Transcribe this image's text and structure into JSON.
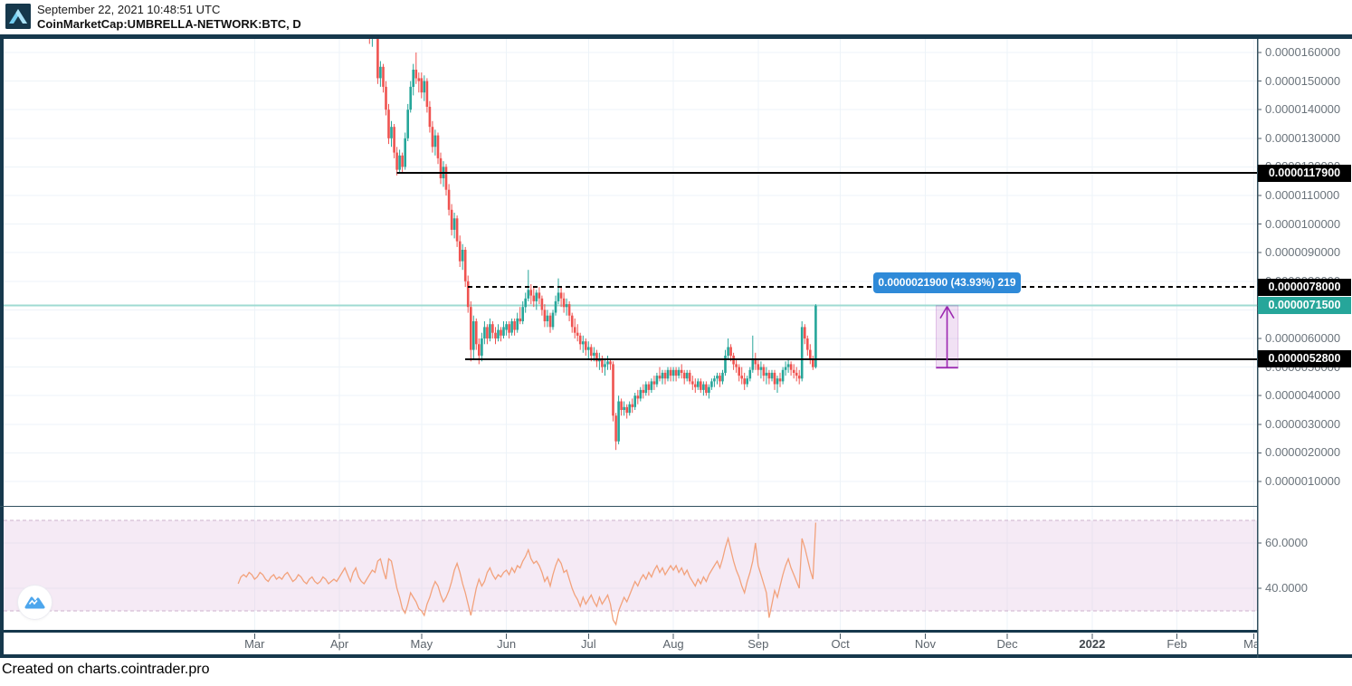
{
  "header": {
    "timestamp": "September 22, 2021 10:48:51 UTC",
    "symbol": "CoinMarketCap:UMBRELLA-NETWORK:BTC, D"
  },
  "footer": {
    "created_on": "Created on charts.cointrader.pro"
  },
  "tooltip": {
    "text": "0.0000021900 (43.93%) 219",
    "bg": "#2f8ad8"
  },
  "price_scale": {
    "labels": [
      "0.0000160000",
      "0.0000150000",
      "0.0000140000",
      "0.0000130000",
      "0.0000120000",
      "0.0000110000",
      "0.0000100000",
      "0.0000090000",
      "0.0000080000",
      "0.0000070000",
      "0.0000060000",
      "0.0000050000",
      "0.0000040000",
      "0.0000030000",
      "0.0000020000",
      "0.0000010000"
    ],
    "tags": [
      {
        "label": "0.0000117900",
        "value_u": 11.79,
        "bg": "#000000"
      },
      {
        "label": "0.0000078000",
        "value_u": 7.8,
        "bg": "#000000"
      },
      {
        "label": "0.0000071500",
        "value_u": 7.15,
        "bg": "#26a69a"
      },
      {
        "label": "0.0000052800",
        "value_u": 5.28,
        "bg": "#000000"
      }
    ]
  },
  "indicator_scale": {
    "labels": [
      {
        "label": "60.0000",
        "value": 60
      },
      {
        "label": "40.0000",
        "value": 40
      }
    ]
  },
  "time_axis": {
    "months": [
      {
        "label": "Mar",
        "date": "2021-03-01"
      },
      {
        "label": "Apr",
        "date": "2021-04-01"
      },
      {
        "label": "May",
        "date": "2021-05-01"
      },
      {
        "label": "Jun",
        "date": "2021-06-01"
      },
      {
        "label": "Jul",
        "date": "2021-07-01"
      },
      {
        "label": "Aug",
        "date": "2021-08-01"
      },
      {
        "label": "Sep",
        "date": "2021-09-01"
      },
      {
        "label": "Oct",
        "date": "2021-10-01"
      },
      {
        "label": "Nov",
        "date": "2021-11-01"
      },
      {
        "label": "Dec",
        "date": "2021-12-01"
      },
      {
        "label": "2022",
        "date": "2022-01-01",
        "bold": true
      },
      {
        "label": "Feb",
        "date": "2022-02-01"
      },
      {
        "label": "Mar",
        "date": "2022-03-01"
      }
    ]
  },
  "colors": {
    "up": "#26a69a",
    "down": "#ef5350",
    "grid": "#edf3f8",
    "border": "#16384c",
    "panel_line": "#31505f",
    "tick": "#4a5a66",
    "axis_text": "#6a737b",
    "rsi_line": "#f2a27c",
    "rsi_band_fill": "rgba(226,196,226,0.35)",
    "rsi_band_edge": "#cdb2cd",
    "measure": "#9c27b0",
    "measure_fill": "rgba(156,39,176,0.14)",
    "last_price_line": "#9fdbd2"
  },
  "chart_data": {
    "type": "candlestick",
    "title": "CoinMarketCap:UMBRELLA-NETWORK:BTC, D",
    "interval": "D",
    "price_unit_note": "all *_u price values are in units of 0.000001 BTC",
    "y_axis_u_range": [
      0.15,
      16.48
    ],
    "last_price": "0.0000071500",
    "grid": true,
    "candles": {
      "from_date": "2021-04-12",
      "ohlc_u": [
        [
          17.6,
          17.8,
          16.3,
          16.5
        ],
        [
          16.5,
          17.9,
          16.2,
          17.5
        ],
        [
          17.5,
          17.7,
          16.8,
          17.0
        ],
        [
          17.0,
          17.2,
          14.9,
          15.1
        ],
        [
          15.1,
          15.7,
          14.8,
          15.5
        ],
        [
          15.5,
          15.6,
          14.6,
          14.8
        ],
        [
          14.8,
          15.0,
          13.8,
          14.0
        ],
        [
          14.0,
          14.2,
          12.8,
          13.0
        ],
        [
          13.0,
          13.6,
          12.7,
          13.4
        ],
        [
          13.4,
          13.5,
          12.3,
          12.5
        ],
        [
          12.5,
          12.7,
          11.7,
          11.9
        ],
        [
          11.9,
          12.6,
          11.8,
          12.4
        ],
        [
          12.4,
          12.5,
          11.8,
          12.0
        ],
        [
          12.0,
          13.2,
          11.9,
          13.0
        ],
        [
          13.0,
          14.2,
          12.9,
          14.0
        ],
        [
          14.0,
          15.0,
          13.9,
          14.8
        ],
        [
          14.8,
          15.6,
          14.5,
          15.4
        ],
        [
          15.4,
          16.0,
          14.9,
          15.1
        ],
        [
          15.1,
          15.3,
          14.6,
          15.0
        ],
        [
          15.1,
          15.3,
          14.4,
          14.6
        ],
        [
          14.6,
          15.2,
          14.3,
          15.0
        ],
        [
          15.0,
          15.1,
          13.9,
          14.1
        ],
        [
          14.1,
          14.3,
          13.2,
          13.4
        ],
        [
          13.4,
          13.6,
          12.5,
          12.7
        ],
        [
          12.7,
          13.3,
          12.4,
          13.1
        ],
        [
          13.1,
          13.2,
          12.1,
          12.3
        ],
        [
          12.3,
          12.5,
          11.4,
          11.6
        ],
        [
          11.6,
          12.2,
          11.3,
          12.0
        ],
        [
          12.0,
          12.1,
          11.0,
          11.2
        ],
        [
          11.2,
          11.4,
          10.3,
          10.5
        ],
        [
          10.5,
          10.7,
          9.6,
          9.8
        ],
        [
          9.8,
          10.4,
          9.5,
          10.2
        ],
        [
          10.2,
          10.3,
          9.2,
          9.4
        ],
        [
          9.4,
          9.6,
          8.5,
          8.7
        ],
        [
          8.7,
          9.3,
          8.4,
          9.1
        ],
        [
          9.1,
          9.2,
          7.8,
          8.0
        ],
        [
          8.0,
          8.2,
          6.9,
          7.1
        ],
        [
          7.1,
          7.3,
          5.2,
          5.6
        ],
        [
          5.6,
          6.8,
          5.3,
          6.6
        ],
        [
          6.6,
          6.7,
          5.6,
          5.8
        ],
        [
          5.8,
          6.0,
          5.1,
          5.4
        ],
        [
          5.4,
          6.2,
          5.2,
          6.0
        ],
        [
          6.0,
          6.6,
          5.8,
          6.4
        ],
        [
          6.4,
          6.5,
          5.8,
          6.0
        ],
        [
          6.0,
          6.7,
          5.9,
          6.5
        ],
        [
          6.5,
          6.6,
          6.0,
          6.2
        ],
        [
          6.2,
          6.4,
          5.8,
          6.0
        ],
        [
          6.0,
          6.5,
          5.9,
          6.3
        ],
        [
          6.3,
          6.4,
          5.9,
          6.1
        ],
        [
          6.1,
          6.6,
          6.0,
          6.4
        ],
        [
          6.3,
          6.6,
          6.1,
          6.5
        ],
        [
          6.5,
          6.6,
          6.0,
          6.2
        ],
        [
          6.2,
          6.7,
          6.1,
          6.6
        ],
        [
          6.6,
          6.7,
          6.1,
          6.3
        ],
        [
          6.3,
          6.9,
          6.2,
          6.7
        ],
        [
          6.7,
          7.1,
          6.5,
          6.6
        ],
        [
          6.6,
          7.3,
          6.5,
          7.1
        ],
        [
          7.1,
          7.6,
          6.9,
          7.4
        ],
        [
          7.4,
          8.4,
          7.3,
          7.7
        ],
        [
          7.7,
          7.9,
          7.2,
          7.5
        ],
        [
          7.5,
          7.8,
          7.1,
          7.3
        ],
        [
          7.3,
          7.7,
          7.0,
          7.6
        ],
        [
          7.6,
          7.8,
          7.2,
          7.4
        ],
        [
          7.4,
          7.5,
          6.8,
          7.0
        ],
        [
          7.0,
          7.2,
          6.4,
          6.6
        ],
        [
          6.6,
          7.0,
          6.4,
          6.8
        ],
        [
          6.8,
          6.9,
          6.2,
          6.4
        ],
        [
          6.4,
          7.0,
          6.3,
          6.9
        ],
        [
          6.9,
          7.5,
          6.8,
          7.3
        ],
        [
          7.3,
          8.1,
          7.2,
          7.6
        ],
        [
          7.6,
          7.8,
          7.1,
          7.4
        ],
        [
          7.4,
          7.6,
          6.9,
          7.1
        ],
        [
          7.1,
          7.4,
          6.8,
          7.2
        ],
        [
          7.2,
          7.3,
          6.6,
          6.8
        ],
        [
          6.8,
          6.9,
          6.2,
          6.4
        ],
        [
          6.4,
          6.7,
          6.0,
          6.2
        ],
        [
          6.2,
          6.5,
          5.9,
          6.1
        ],
        [
          6.1,
          6.2,
          5.6,
          5.8
        ],
        [
          5.8,
          6.1,
          5.5,
          5.9
        ],
        [
          5.9,
          6.0,
          5.4,
          5.6
        ],
        [
          5.6,
          5.9,
          5.3,
          5.7
        ],
        [
          5.7,
          5.8,
          5.2,
          5.4
        ],
        [
          5.4,
          5.7,
          5.2,
          5.5
        ],
        [
          5.5,
          5.6,
          5.0,
          5.2
        ],
        [
          5.2,
          5.5,
          4.9,
          5.3
        ],
        [
          5.3,
          5.4,
          4.8,
          5.0
        ],
        [
          5.0,
          5.3,
          4.7,
          5.1
        ],
        [
          5.1,
          5.4,
          4.9,
          5.2
        ],
        [
          5.2,
          5.3,
          4.9,
          5.1
        ],
        [
          5.1,
          5.2,
          3.1,
          3.3
        ],
        [
          3.3,
          3.4,
          2.1,
          2.4
        ],
        [
          2.4,
          4.0,
          2.3,
          3.8
        ],
        [
          3.8,
          3.9,
          3.3,
          3.5
        ],
        [
          3.5,
          3.8,
          3.3,
          3.6
        ],
        [
          3.6,
          3.7,
          3.2,
          3.4
        ],
        [
          3.4,
          3.8,
          3.3,
          3.7
        ],
        [
          3.7,
          3.9,
          3.4,
          3.6
        ],
        [
          3.6,
          4.1,
          3.5,
          4.0
        ],
        [
          4.0,
          4.2,
          3.7,
          3.9
        ],
        [
          3.9,
          4.3,
          3.8,
          4.2
        ],
        [
          4.2,
          4.4,
          3.9,
          4.1
        ],
        [
          4.1,
          4.5,
          4.0,
          4.4
        ],
        [
          4.4,
          4.5,
          4.0,
          4.2
        ],
        [
          4.2,
          4.6,
          4.1,
          4.5
        ],
        [
          4.5,
          4.7,
          4.2,
          4.4
        ],
        [
          4.4,
          4.8,
          4.3,
          4.7
        ],
        [
          4.7,
          5.0,
          4.5,
          4.6
        ],
        [
          4.6,
          4.9,
          4.4,
          4.8
        ],
        [
          4.8,
          4.9,
          4.4,
          4.6
        ],
        [
          4.6,
          5.0,
          4.5,
          4.9
        ],
        [
          4.9,
          5.0,
          4.5,
          4.7
        ],
        [
          4.7,
          5.0,
          4.5,
          4.9
        ],
        [
          4.9,
          5.0,
          4.5,
          4.7
        ],
        [
          4.7,
          5.0,
          4.6,
          4.9
        ],
        [
          4.9,
          5.1,
          4.6,
          4.8
        ],
        [
          4.8,
          4.9,
          4.4,
          4.6
        ],
        [
          4.6,
          4.9,
          4.5,
          4.8
        ],
        [
          4.8,
          4.9,
          4.4,
          4.5
        ],
        [
          4.5,
          4.7,
          4.2,
          4.4
        ],
        [
          4.4,
          4.6,
          4.1,
          4.3
        ],
        [
          4.3,
          4.6,
          4.2,
          4.5
        ],
        [
          4.5,
          4.6,
          4.1,
          4.2
        ],
        [
          4.2,
          4.5,
          4.0,
          4.4
        ],
        [
          4.4,
          4.5,
          4.0,
          4.1
        ],
        [
          4.1,
          4.4,
          3.9,
          4.3
        ],
        [
          4.3,
          4.6,
          4.2,
          4.5
        ],
        [
          4.5,
          4.7,
          4.3,
          4.6
        ],
        [
          4.6,
          4.8,
          4.4,
          4.7
        ],
        [
          4.7,
          4.8,
          4.3,
          4.5
        ],
        [
          4.5,
          4.9,
          4.4,
          4.8
        ],
        [
          4.8,
          5.6,
          4.7,
          5.4
        ],
        [
          5.4,
          6.0,
          5.3,
          5.7
        ],
        [
          5.7,
          5.8,
          5.2,
          5.4
        ],
        [
          5.4,
          5.5,
          4.9,
          5.1
        ],
        [
          5.1,
          5.3,
          4.8,
          5.0
        ],
        [
          5.0,
          5.1,
          4.5,
          4.7
        ],
        [
          4.7,
          5.0,
          4.4,
          4.6
        ],
        [
          4.6,
          4.8,
          4.2,
          4.4
        ],
        [
          4.4,
          4.7,
          4.3,
          4.6
        ],
        [
          4.6,
          5.0,
          4.5,
          4.9
        ],
        [
          4.9,
          6.1,
          4.8,
          5.3
        ],
        [
          5.3,
          5.5,
          4.9,
          5.1
        ],
        [
          5.1,
          5.3,
          4.7,
          4.9
        ],
        [
          4.9,
          5.2,
          4.6,
          5.0
        ],
        [
          5.0,
          5.1,
          4.5,
          4.7
        ],
        [
          4.7,
          5.0,
          4.4,
          4.8
        ],
        [
          4.8,
          4.9,
          4.4,
          4.6
        ],
        [
          4.6,
          4.9,
          4.5,
          4.8
        ],
        [
          4.8,
          4.9,
          4.2,
          4.4
        ],
        [
          4.4,
          4.7,
          4.1,
          4.6
        ],
        [
          4.6,
          4.8,
          4.3,
          4.5
        ],
        [
          4.5,
          5.0,
          4.4,
          4.9
        ],
        [
          4.9,
          5.2,
          4.7,
          5.0
        ],
        [
          5.0,
          5.3,
          4.8,
          5.1
        ],
        [
          5.1,
          5.2,
          4.7,
          4.9
        ],
        [
          4.9,
          5.1,
          4.6,
          4.8
        ],
        [
          4.8,
          5.0,
          4.5,
          4.7
        ],
        [
          4.7,
          4.9,
          4.4,
          4.6
        ],
        [
          4.6,
          6.6,
          4.5,
          6.4
        ],
        [
          6.4,
          6.5,
          5.8,
          6.0
        ],
        [
          6.0,
          6.1,
          5.4,
          5.6
        ],
        [
          5.6,
          5.8,
          5.1,
          5.3
        ],
        [
          5.3,
          5.4,
          4.9,
          5.0
        ],
        [
          5.0,
          7.2,
          4.95,
          7.15
        ]
      ]
    },
    "levels": [
      {
        "label": "0.0000117900",
        "value_u": 11.79,
        "style": "solid",
        "color": "#000000",
        "start_date": "2021-04-22"
      },
      {
        "label": "0.0000078000",
        "value_u": 7.8,
        "style": "dashed",
        "color": "#000000",
        "start_date": "2021-05-18"
      },
      {
        "label": "0.0000071500",
        "value_u": 7.15,
        "style": "solid",
        "color": "#9fdbd2",
        "start_date": null,
        "role": "last-price"
      },
      {
        "label": "0.0000052800",
        "value_u": 5.28,
        "style": "solid",
        "color": "#000000",
        "start_date": "2021-05-17"
      }
    ],
    "measurement": {
      "from_date": "2021-11-05",
      "to_date": "2021-11-13",
      "from_u": 4.95,
      "to_u": 7.15,
      "label": "0.0000021900 (43.93%) 219"
    },
    "oscillator": {
      "type": "line",
      "start_date": "2021-02-23",
      "band_upper": 70,
      "band_lower": 30,
      "axis_labels": [
        60,
        40
      ],
      "values": [
        42,
        45,
        46,
        45,
        47,
        46,
        44,
        45,
        47,
        46,
        44,
        43,
        45,
        46,
        44,
        45,
        44,
        46,
        47,
        45,
        43,
        44,
        46,
        45,
        43,
        42,
        44,
        45,
        43,
        42,
        43,
        45,
        44,
        42,
        43,
        44,
        43,
        45,
        47,
        49,
        46,
        43,
        47,
        49,
        45,
        43,
        42,
        44,
        46,
        48,
        47,
        52,
        53,
        48,
        44,
        53,
        52,
        46,
        40,
        36,
        31,
        29,
        33,
        38,
        36,
        34,
        31,
        30,
        28,
        33,
        36,
        40,
        43,
        41,
        37,
        34,
        36,
        39,
        43,
        48,
        51,
        47,
        42,
        38,
        33,
        28,
        34,
        40,
        44,
        41,
        43,
        47,
        49,
        46,
        44,
        46,
        45,
        47,
        48,
        46,
        49,
        47,
        50,
        49,
        52,
        54,
        57,
        53,
        51,
        52,
        50,
        47,
        43,
        45,
        41,
        46,
        50,
        53,
        51,
        47,
        48,
        44,
        40,
        37,
        35,
        32,
        36,
        33,
        35,
        37,
        34,
        32,
        36,
        33,
        35,
        37,
        33,
        26,
        24,
        30,
        33,
        36,
        34,
        37,
        40,
        43,
        41,
        44,
        46,
        44,
        47,
        45,
        48,
        50,
        47,
        49,
        46,
        48,
        50,
        48,
        50,
        47,
        49,
        46,
        48,
        45,
        43,
        41,
        44,
        42,
        45,
        43,
        46,
        48,
        50,
        52,
        49,
        53,
        58,
        62,
        57,
        52,
        48,
        45,
        41,
        38,
        43,
        47,
        52,
        60,
        50,
        46,
        42,
        38,
        27,
        33,
        39,
        36,
        41,
        46,
        50,
        53,
        49,
        46,
        43,
        40,
        62,
        58,
        53,
        48,
        44,
        69
      ]
    }
  }
}
